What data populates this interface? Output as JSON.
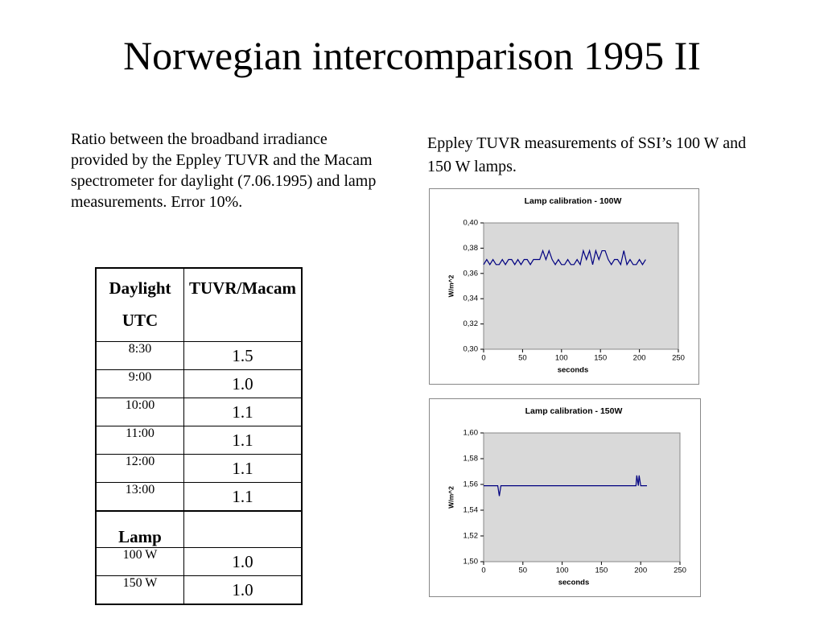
{
  "title": "Norwegian intercomparison 1995 II",
  "left_text": "Ratio between the broadband irradiance provided by the Eppley TUVR and the Macam spectrometer for daylight (7.06.1995) and lamp measurements. Error 10%.",
  "right_text": "Eppley TUVR measurements of SSI’s 100 W and 150 W lamps.",
  "table": {
    "header": [
      "Daylight UTC",
      "TUVR/Macam"
    ],
    "rows": [
      [
        "8:30",
        "1.5"
      ],
      [
        "9:00",
        "1.0"
      ],
      [
        "10:00",
        "1.1"
      ],
      [
        "11:00",
        "1.1"
      ],
      [
        "12:00",
        "1.1"
      ],
      [
        "13:00",
        "1.1"
      ]
    ],
    "section_label": "Lamp",
    "lamp_rows": [
      [
        "100 W",
        "1.0"
      ],
      [
        "150 W",
        "1.0"
      ]
    ]
  },
  "chart_data": [
    {
      "type": "line",
      "title": "Lamp calibration - 100W",
      "x_label": "seconds",
      "y_label": "W/m^2",
      "color": "#000080",
      "x": [
        0,
        4,
        8,
        12,
        16,
        20,
        24,
        28,
        32,
        36,
        40,
        44,
        48,
        52,
        56,
        60,
        64,
        68,
        72,
        76,
        80,
        84,
        88,
        92,
        96,
        100,
        104,
        108,
        112,
        116,
        120,
        124,
        128,
        132,
        136,
        140,
        144,
        148,
        152,
        156,
        160,
        164,
        168,
        172,
        176,
        180,
        184,
        188,
        192,
        196,
        200,
        204,
        208
      ],
      "values": [
        0.367,
        0.371,
        0.367,
        0.371,
        0.367,
        0.367,
        0.371,
        0.367,
        0.371,
        0.371,
        0.367,
        0.371,
        0.367,
        0.371,
        0.371,
        0.367,
        0.371,
        0.371,
        0.371,
        0.378,
        0.371,
        0.378,
        0.371,
        0.367,
        0.371,
        0.367,
        0.367,
        0.371,
        0.367,
        0.367,
        0.371,
        0.367,
        0.378,
        0.371,
        0.378,
        0.367,
        0.378,
        0.371,
        0.378,
        0.378,
        0.371,
        0.367,
        0.371,
        0.371,
        0.367,
        0.378,
        0.367,
        0.371,
        0.367,
        0.367,
        0.371,
        0.367,
        0.371
      ],
      "xlim": [
        0,
        250
      ],
      "xticks": [
        0,
        50,
        100,
        150,
        200,
        250
      ],
      "ylim": [
        0.3,
        0.4
      ],
      "yticks": [
        {
          "value": 0.3,
          "label": "0,30"
        },
        {
          "value": 0.32,
          "label": "0,32"
        },
        {
          "value": 0.34,
          "label": "0,34"
        },
        {
          "value": 0.36,
          "label": "0,36"
        },
        {
          "value": 0.38,
          "label": "0,38"
        },
        {
          "value": 0.4,
          "label": "0,40"
        }
      ]
    },
    {
      "type": "line",
      "title": "Lamp calibration - 150W",
      "x_label": "seconds",
      "y_label": "W/m^2",
      "color": "#000080",
      "x": [
        0,
        18,
        20,
        22,
        194,
        195,
        197,
        198,
        200,
        208
      ],
      "values": [
        1.559,
        1.559,
        1.551,
        1.559,
        1.559,
        1.567,
        1.559,
        1.567,
        1.559,
        1.559
      ],
      "xlim": [
        0,
        250
      ],
      "xticks": [
        0,
        50,
        100,
        150,
        200,
        250
      ],
      "ylim": [
        1.5,
        1.6
      ],
      "yticks": [
        {
          "value": 1.5,
          "label": "1,50"
        },
        {
          "value": 1.52,
          "label": "1,52"
        },
        {
          "value": 1.54,
          "label": "1,54"
        },
        {
          "value": 1.56,
          "label": "1,56"
        },
        {
          "value": 1.58,
          "label": "1,58"
        },
        {
          "value": 1.6,
          "label": "1,60"
        }
      ]
    }
  ]
}
